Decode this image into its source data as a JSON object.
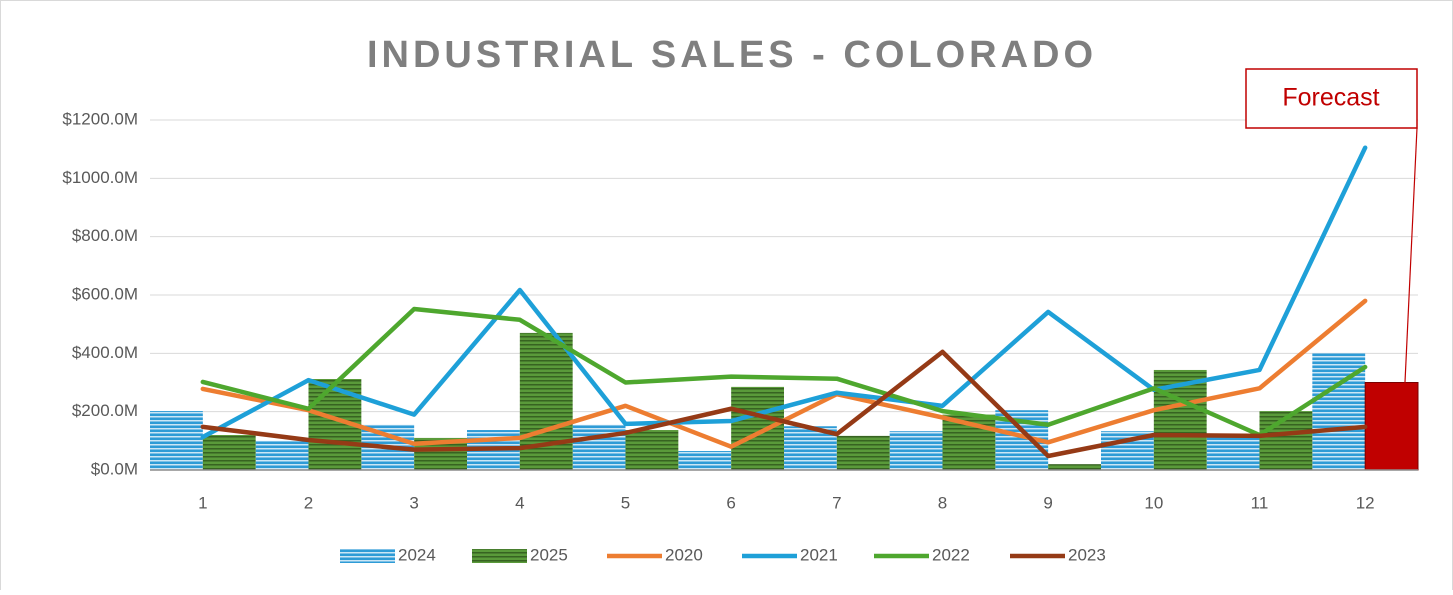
{
  "chart_data": {
    "type": "bar_line",
    "title": "INDUSTRIAL SALES - COLORADO",
    "categories": [
      "1",
      "2",
      "3",
      "4",
      "5",
      "6",
      "7",
      "8",
      "9",
      "10",
      "11",
      "12"
    ],
    "ylim": [
      0,
      1200
    ],
    "yticks": [
      {
        "value": 0,
        "label": "$0.0M"
      },
      {
        "value": 200,
        "label": "$200.0M"
      },
      {
        "value": 400,
        "label": "$400.0M"
      },
      {
        "value": 600,
        "label": "$600.0M"
      },
      {
        "value": 800,
        "label": "$800.0M"
      },
      {
        "value": 1000,
        "label": "$1000.0M"
      },
      {
        "value": 1200,
        "label": "$1200.0M"
      }
    ],
    "grid": true,
    "legend": "bottom",
    "series": [
      {
        "name": "2024",
        "type": "bar",
        "color": "#2e9bd6",
        "values": [
          202,
          100,
          155,
          137,
          155,
          65,
          150,
          133,
          205,
          133,
          120,
          400
        ]
      },
      {
        "name": "2025",
        "type": "bar",
        "color": "#5a9a3a",
        "values": [
          120,
          312,
          110,
          470,
          137,
          285,
          117,
          190,
          20,
          343,
          202,
          300
        ]
      },
      {
        "name": "2020",
        "type": "line",
        "color": "#ed7d31",
        "values": [
          278,
          205,
          90,
          110,
          220,
          80,
          260,
          180,
          95,
          205,
          280,
          580
        ]
      },
      {
        "name": "2021",
        "type": "line",
        "color": "#1ea0d8",
        "values": [
          113,
          308,
          190,
          617,
          158,
          168,
          265,
          220,
          542,
          275,
          343,
          1105
        ]
      },
      {
        "name": "2022",
        "type": "line",
        "color": "#4ea72e",
        "values": [
          302,
          210,
          552,
          515,
          300,
          320,
          313,
          202,
          155,
          280,
          120,
          353
        ]
      },
      {
        "name": "2023",
        "type": "line",
        "color": "#953a16",
        "values": [
          148,
          103,
          70,
          75,
          127,
          210,
          123,
          405,
          48,
          120,
          117,
          148
        ]
      }
    ],
    "annotation": {
      "text": "Forecast",
      "series": 1,
      "point": 11,
      "color": "#c00000"
    }
  }
}
